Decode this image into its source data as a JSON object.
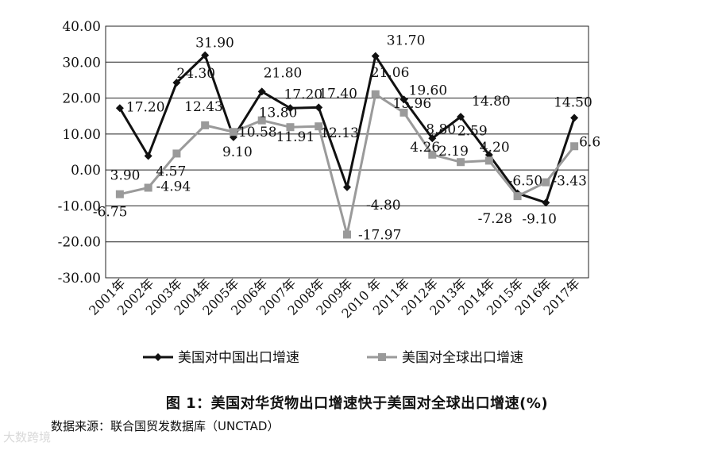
{
  "chart_data": {
    "type": "line",
    "categories": [
      "2001年",
      "2002年",
      "2003年",
      "2004年",
      "2005年",
      "2006年",
      "2007年",
      "2008年",
      "2009年",
      "2010 年",
      "2011年",
      "2012年",
      "2013年",
      "2014年",
      "2015年",
      "2016年",
      "2017年"
    ],
    "ylim": [
      -30,
      40
    ],
    "yticks": [
      "40.00",
      "30.00",
      "20.00",
      "10.00",
      "0.00",
      "-10.00",
      "-20.00",
      "-30.00"
    ],
    "ytick_values": [
      40,
      30,
      20,
      10,
      0,
      -10,
      -20,
      -30
    ],
    "grid": true,
    "legend_position": "bottom",
    "series": [
      {
        "name": "美国对中国出口增速",
        "color": "#111111",
        "marker": "diamond",
        "values": [
          17.2,
          3.9,
          24.3,
          31.9,
          9.1,
          21.8,
          17.2,
          17.4,
          -4.8,
          31.7,
          19.6,
          8.8,
          14.8,
          4.2,
          -6.5,
          -9.1,
          14.5
        ],
        "labels": [
          "17.20",
          "3.90",
          "24.30",
          "31.90",
          "9.10",
          "21.80",
          "17.20",
          "17.40",
          "-4.80",
          "31.70",
          "19.60",
          "8.80",
          "14.80",
          "4.20",
          "-6.50",
          "-9.10",
          "14.50"
        ]
      },
      {
        "name": "美国对全球出口增速",
        "color": "#9a9a9a",
        "marker": "square",
        "values": [
          -6.75,
          -4.94,
          4.57,
          12.43,
          10.58,
          13.8,
          11.91,
          12.13,
          -17.97,
          21.06,
          15.96,
          4.26,
          2.19,
          2.59,
          -7.28,
          -3.43,
          6.6
        ],
        "labels": [
          "-6.75",
          "-4.94",
          "4.57",
          "12.43",
          "10.58",
          "13.80",
          "11.91",
          "12.13",
          "-17.97",
          "21.06",
          "15.96",
          "4.26",
          "2.19",
          "2.59",
          "-7.28",
          "-3.43",
          "6.6"
        ]
      }
    ]
  },
  "caption": "图 1：美国对华货物出口增速快于美国对全球出口增速(%)",
  "source": "数据来源：联合国贸发数据库（UNCTAD）",
  "watermark": "大数跨境"
}
